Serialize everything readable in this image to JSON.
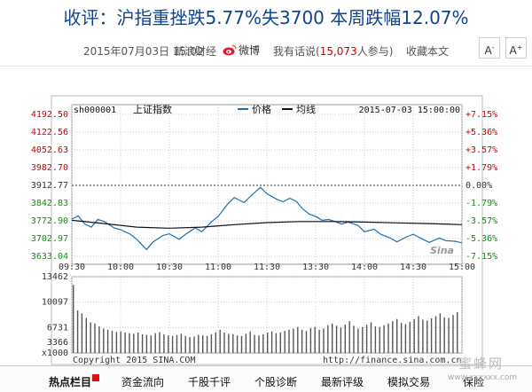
{
  "headline": "收评：沪指重挫跌5.77%失3700 本周跌幅12.07%",
  "meta": {
    "date": "2015年07月03日  15:02",
    "source": "新浪财经",
    "weibo": "微博",
    "comment_prefix": "我有话说(",
    "comment_count": "15,073",
    "comment_suffix": "人参与)",
    "favorite": "收藏本文"
  },
  "font_controls": {
    "smaller": "A",
    "larger": "A"
  },
  "chart_data": {
    "type": "line",
    "code": "sh000001",
    "name": "上证指数",
    "legend": [
      "价格",
      "均线"
    ],
    "timestamp": "2015-07-03 15:00:00",
    "prev_close": 3912.77,
    "ylim": [
      3633.04,
      4192.5
    ],
    "price_ticks": [
      "4192.50",
      "4122.56",
      "4052.63",
      "3982.70",
      "3912.77",
      "3842.83",
      "3772.90",
      "3702.97",
      "3633.04"
    ],
    "pct_ticks": [
      "+7.15%",
      "+5.36%",
      "+3.57%",
      "+1.79%",
      "0.00%",
      "-1.79%",
      "-3.57%",
      "-5.36%",
      "-7.15%"
    ],
    "time_ticks": [
      "09:30",
      "10:00",
      "10:30",
      "11:00",
      "11:30",
      "13:30",
      "14:00",
      "14:30",
      "15:00"
    ],
    "volume_ticks": [
      "13462",
      "10097",
      "6731",
      "3366",
      "x1000"
    ],
    "volume_ylim": [
      0,
      13462
    ],
    "price_series": {
      "name": "价格",
      "x": [
        0,
        4,
        8,
        12,
        16,
        20,
        26,
        30,
        36,
        40,
        46,
        50,
        56,
        60,
        66,
        70,
        76,
        80,
        86,
        90,
        96,
        100,
        106,
        110,
        116,
        120,
        126,
        130,
        134,
        138,
        142,
        146,
        150,
        154,
        158,
        162,
        166,
        170,
        176,
        180,
        186,
        190,
        196,
        200,
        206,
        210,
        216,
        220,
        226,
        230,
        236,
        240
      ],
      "values": [
        3780,
        3792,
        3760,
        3748,
        3778,
        3770,
        3745,
        3738,
        3720,
        3700,
        3660,
        3690,
        3715,
        3722,
        3700,
        3720,
        3745,
        3730,
        3770,
        3790,
        3840,
        3865,
        3845,
        3870,
        3905,
        3880,
        3858,
        3848,
        3862,
        3850,
        3820,
        3800,
        3790,
        3775,
        3778,
        3770,
        3760,
        3768,
        3755,
        3730,
        3740,
        3720,
        3705,
        3690,
        3710,
        3720,
        3700,
        3688,
        3705,
        3695,
        3692,
        3686
      ]
    },
    "avg_series": {
      "name": "均线",
      "x": [
        0,
        20,
        40,
        60,
        80,
        100,
        120,
        140,
        160,
        180,
        200,
        220,
        240
      ],
      "values": [
        3775,
        3762,
        3748,
        3744,
        3748,
        3758,
        3766,
        3770,
        3770,
        3768,
        3765,
        3762,
        3758
      ]
    },
    "volume": [
      12000,
      7500,
      7000,
      6200,
      5400,
      5200,
      4700,
      4300,
      4100,
      3900,
      3700,
      3800,
      3600,
      3500,
      3400,
      3600,
      3300,
      3200,
      3100,
      3500,
      3700,
      3300,
      3100,
      3000,
      3200,
      3400,
      3000,
      2800,
      2900,
      3200,
      3100,
      3000,
      3300,
      3600,
      4100,
      3600,
      3400,
      3300,
      3100,
      3000,
      3400,
      3800,
      3200,
      3100,
      3300,
      3600,
      3800,
      3500,
      3600,
      3900,
      4100,
      4300,
      4600,
      4100,
      3900,
      4400,
      4600,
      4100,
      4300,
      4900,
      5200,
      4800,
      4500,
      5000,
      5600,
      4800,
      4300,
      4600,
      5000,
      5400,
      4700,
      4600,
      4900,
      5200,
      5600,
      6000,
      5300,
      5100,
      5500,
      6000,
      6500,
      5900,
      5700,
      6100,
      6500,
      7000,
      6300,
      6200,
      6700,
      7200
    ],
    "copyright": "Copyright 2015 SINA.COM",
    "url": "http://finance.sina.com.cn"
  },
  "colors": {
    "headline": "#12448c",
    "price_line": "#1f6eb3",
    "avg_line": "#111111",
    "up": "#cc0000",
    "down": "#009900"
  },
  "bottom_nav": {
    "items": [
      "热点栏目",
      "资金流向",
      "千股千评",
      "个股诊断",
      "最新评级",
      "模拟交易",
      "保险"
    ]
  },
  "watermark": {
    "text": "蜜蜂网",
    "url": "www.xxxxxx.com"
  }
}
